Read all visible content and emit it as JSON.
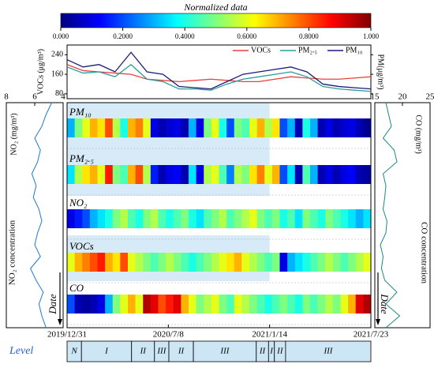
{
  "chart_data": [
    {
      "type": "colorbar",
      "title": "Normalized data",
      "colormap": [
        "#00007f",
        "#0000ff",
        "#007fff",
        "#00ffff",
        "#7fff7f",
        "#ffff00",
        "#ff7f00",
        "#ff0000",
        "#7f0000"
      ],
      "xlim": [
        0,
        1
      ],
      "xticks": [
        {
          "value": 0,
          "label": "0.000"
        },
        {
          "value": 0.2,
          "label": "0.2000"
        },
        {
          "value": 0.4,
          "label": "0.4000"
        },
        {
          "value": 0.6,
          "label": "0.6000"
        },
        {
          "value": 0.8,
          "label": "0.8000"
        },
        {
          "value": 1,
          "label": "1.000"
        }
      ]
    },
    {
      "type": "line",
      "ylabel": "VOCs (μg/m³)",
      "y2label": "PM(μg/m³)",
      "legend": "upper right",
      "x": [
        0,
        30,
        60,
        90,
        120,
        150,
        180,
        210,
        240,
        270,
        300,
        330,
        360,
        390,
        420,
        450,
        480,
        510,
        540,
        570
      ],
      "xlim": [
        0,
        570
      ],
      "ylim": [
        60,
        280
      ],
      "yticks": [
        80,
        160,
        240
      ],
      "series": [
        {
          "name": "VOCs",
          "color": "#e8403a",
          "values": [
            200,
            175,
            170,
            165,
            160,
            140,
            135,
            130,
            135,
            140,
            135,
            130,
            130,
            140,
            150,
            145,
            140,
            140,
            145,
            150
          ]
        },
        {
          "name": "PM₂.₅",
          "color": "#2a9d9a",
          "values": [
            190,
            165,
            170,
            150,
            200,
            140,
            130,
            100,
            100,
            95,
            120,
            140,
            150,
            160,
            170,
            150,
            110,
            100,
            95,
            90
          ]
        },
        {
          "name": "PM₁₀",
          "color": "#1a1a7a",
          "values": [
            220,
            190,
            200,
            170,
            250,
            170,
            160,
            110,
            105,
            100,
            130,
            160,
            170,
            180,
            190,
            170,
            120,
            110,
            105,
            100
          ]
        }
      ]
    },
    {
      "type": "vline",
      "xlabel": "NO₂ (mg/m³)",
      "annotation": "NO₂ concentration",
      "axis_label": "Date",
      "color": "#1f77d4",
      "xlim": [
        8,
        4
      ],
      "xticks": [
        8,
        6,
        4
      ],
      "values": [
        4.8,
        5.2,
        5.5,
        6.0,
        5.6,
        5.8,
        6.2,
        5.9,
        6.1,
        5.7,
        5.5,
        5.8,
        6.0,
        5.6,
        6.3,
        5.9,
        5.4,
        5.7,
        5.5,
        5.2
      ]
    },
    {
      "type": "vline",
      "xlabel": "CO (mg/m³)",
      "annotation": "CO concentration",
      "axis_label": "Date",
      "color": "#1a8a80",
      "xlim": [
        15,
        25
      ],
      "xticks": [
        15,
        20,
        25
      ],
      "values": [
        17,
        17.5,
        18,
        16.5,
        18.5,
        19,
        16.5,
        17,
        16.8,
        16.5,
        17.2,
        17,
        16,
        16.5,
        16.2,
        16.8,
        19,
        17,
        19.5,
        17
      ]
    },
    {
      "type": "heatstrip",
      "xlim": [
        0,
        570
      ],
      "xticks": [
        {
          "value": 0,
          "label": "2019/12/31"
        },
        {
          "value": 190,
          "label": "2020/7/8"
        },
        {
          "value": 380,
          "label": "2021/1/14"
        },
        {
          "value": 570,
          "label": "2021/7/23"
        }
      ],
      "rows": [
        {
          "name": "PM₁₀",
          "values": [
            0.3,
            0.5,
            0.6,
            0.7,
            0.65,
            0.8,
            0.55,
            0.4,
            0.7,
            0.75,
            0.6,
            0.1,
            0.05,
            0.08,
            0.1,
            0.05,
            0.3,
            0.1,
            0.5,
            0.6,
            0.4,
            0.2,
            0.5,
            0.45,
            0.6,
            0.7,
            0.55,
            0.65,
            0.2,
            0.3,
            0.05,
            0.4,
            0.3,
            0.05,
            0.1,
            0.05,
            0.08,
            0.1,
            0.05,
            0.02
          ]
        },
        {
          "name": "PM₂.₅",
          "values": [
            0.35,
            0.55,
            0.65,
            0.7,
            0.6,
            0.85,
            0.5,
            0.45,
            0.7,
            0.8,
            0.55,
            0.15,
            0.05,
            0.1,
            0.12,
            0.05,
            0.35,
            0.1,
            0.55,
            0.6,
            0.45,
            0.25,
            0.55,
            0.5,
            0.65,
            0.75,
            0.6,
            0.7,
            0.2,
            0.35,
            0.05,
            0.45,
            0.3,
            0.05,
            0.1,
            0.05,
            0.1,
            0.12,
            0.05,
            0.03
          ]
        },
        {
          "name": "NO₂",
          "values": [
            0.1,
            0.15,
            0.2,
            0.3,
            0.35,
            0.4,
            0.5,
            0.55,
            0.45,
            0.4,
            0.5,
            0.55,
            0.45,
            0.4,
            0.45,
            0.5,
            0.4,
            0.35,
            0.45,
            0.5,
            0.55,
            0.45,
            0.5,
            0.55,
            0.6,
            0.5,
            0.45,
            0.5,
            0.4,
            0.45,
            0.35,
            0.5,
            0.45,
            0.4,
            0.5,
            0.45,
            0.4,
            0.35,
            0.3,
            0.35
          ]
        },
        {
          "name": "VOCs",
          "values": [
            0.6,
            0.7,
            0.75,
            0.8,
            0.85,
            0.7,
            0.65,
            0.8,
            0.6,
            0.55,
            0.5,
            0.45,
            0.5,
            0.55,
            0.5,
            0.45,
            0.4,
            0.45,
            0.5,
            0.55,
            0.6,
            0.65,
            0.7,
            0.6,
            0.55,
            0.5,
            0.45,
            0.5,
            0.1,
            0.3,
            0.35,
            0.4,
            0.45,
            0.5,
            0.55,
            0.5,
            0.45,
            0.5,
            0.55,
            0.6
          ]
        },
        {
          "name": "CO",
          "values": [
            0.2,
            0.05,
            0.03,
            0.05,
            0.1,
            0.3,
            0.5,
            0.6,
            0.7,
            0.6,
            0.95,
            0.9,
            0.8,
            0.85,
            0.9,
            0.7,
            0.6,
            0.5,
            0.55,
            0.6,
            0.5,
            0.45,
            0.6,
            0.55,
            0.5,
            0.45,
            0.4,
            0.45,
            0.5,
            0.45,
            0.4,
            0.5,
            0.45,
            0.5,
            0.55,
            0.5,
            0.6,
            0.7,
            0.9,
            0.95
          ]
        }
      ]
    },
    {
      "type": "segments",
      "label": "Level",
      "xlim": [
        0,
        570
      ],
      "color": "#cce6f5",
      "segments": [
        {
          "label": "N",
          "start": 0,
          "end": 27
        },
        {
          "label": "I",
          "start": 27,
          "end": 121
        },
        {
          "label": "II",
          "start": 121,
          "end": 164
        },
        {
          "label": "III",
          "start": 164,
          "end": 191
        },
        {
          "label": "II",
          "start": 191,
          "end": 237
        },
        {
          "label": "III",
          "start": 237,
          "end": 355
        },
        {
          "label": "II",
          "start": 355,
          "end": 378
        },
        {
          "label": "I",
          "start": 378,
          "end": 389
        },
        {
          "label": "II",
          "start": 389,
          "end": 410
        },
        {
          "label": "III",
          "start": 410,
          "end": 570
        }
      ]
    }
  ]
}
